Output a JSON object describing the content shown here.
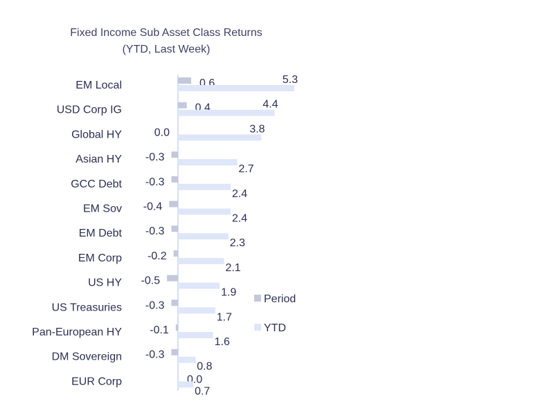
{
  "chart_data": {
    "type": "bar",
    "orientation": "horizontal",
    "title": "Fixed Income Sub Asset Class Returns",
    "subtitle": "(YTD, Last Week)",
    "categories": [
      "EM Local",
      "USD Corp IG",
      "Global HY",
      "Asian HY",
      "GCC Debt",
      "EM Sov",
      "EM Debt",
      "EM Corp",
      "US HY",
      "US Treasuries",
      "Pan-European HY",
      "DM Sovereign",
      "EUR Corp"
    ],
    "series": [
      {
        "name": "Period",
        "color": "#c3c8dc",
        "values": [
          0.6,
          0.4,
          0.0,
          -0.3,
          -0.3,
          -0.4,
          -0.3,
          -0.2,
          -0.5,
          -0.3,
          -0.1,
          -0.3,
          0.0
        ]
      },
      {
        "name": "YTD",
        "color": "#dfe6f9",
        "values": [
          5.3,
          4.4,
          3.8,
          2.7,
          2.4,
          2.4,
          2.3,
          2.1,
          1.9,
          1.7,
          1.6,
          0.8,
          0.7
        ]
      }
    ],
    "value_labels": {
      "Period": [
        "0.6",
        "0.4",
        "0.0",
        "-0.3",
        "-0.3",
        "-0.4",
        "-0.3",
        "-0.2",
        "-0.5",
        "-0.3",
        "-0.1",
        "-0.3",
        "0.0"
      ],
      "YTD": [
        "5.3",
        "4.4",
        "3.8",
        "2.7",
        "2.4",
        "2.4",
        "2.3",
        "2.1",
        "1.9",
        "1.7",
        "1.6",
        "0.8",
        "0.7"
      ]
    },
    "legend": {
      "position": "right",
      "items": [
        "Period",
        "YTD"
      ]
    },
    "axis_color": "#c7d3f0",
    "grid": false
  }
}
